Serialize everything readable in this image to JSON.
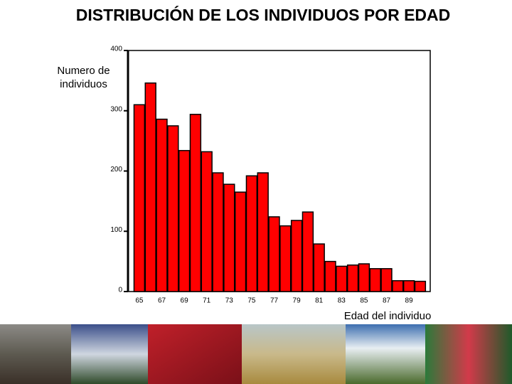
{
  "chart_data": {
    "type": "bar",
    "title": "DISTRIBUCIÓN DE LOS INDIVIDUOS POR EDAD",
    "y_label": "Numero de individuos",
    "x_label": "Edad del individuo",
    "categories": [
      "65",
      null,
      "67",
      null,
      "69",
      null,
      "71",
      null,
      "73",
      null,
      "75",
      null,
      "77",
      null,
      "79",
      null,
      "81",
      null,
      "83",
      null,
      "85",
      null,
      "87",
      null,
      "89",
      null
    ],
    "values": [
      310,
      346,
      286,
      275,
      234,
      294,
      232,
      197,
      178,
      165,
      192,
      197,
      124,
      109,
      118,
      132,
      79,
      50,
      42,
      44,
      46,
      38,
      38,
      18,
      18,
      17
    ],
    "color": "#ff0000",
    "ylim": [
      0,
      400
    ],
    "yticks": [
      0,
      100,
      200,
      300,
      400
    ]
  }
}
